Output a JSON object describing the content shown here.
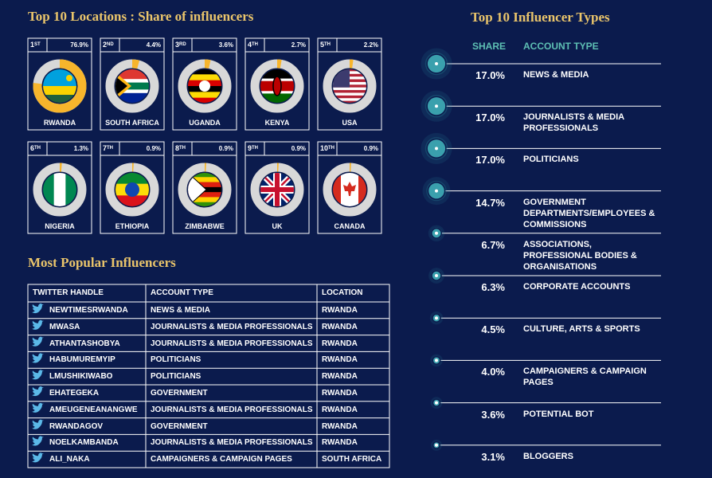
{
  "locations_section": {
    "title": "Top 10 Locations : Share of influencers",
    "locations": [
      {
        "rank": "1",
        "rank_suffix": "ST",
        "share": 76.9,
        "share_label": "76.9%",
        "name": "RWANDA"
      },
      {
        "rank": "2",
        "rank_suffix": "ND",
        "share": 4.4,
        "share_label": "4.4%",
        "name": "SOUTH AFRICA"
      },
      {
        "rank": "3",
        "rank_suffix": "RD",
        "share": 3.6,
        "share_label": "3.6%",
        "name": "UGANDA"
      },
      {
        "rank": "4",
        "rank_suffix": "TH",
        "share": 2.7,
        "share_label": "2.7%",
        "name": "KENYA"
      },
      {
        "rank": "5",
        "rank_suffix": "TH",
        "share": 2.2,
        "share_label": "2.2%",
        "name": "USA"
      },
      {
        "rank": "6",
        "rank_suffix": "TH",
        "share": 1.3,
        "share_label": "1.3%",
        "name": "NIGERIA"
      },
      {
        "rank": "7",
        "rank_suffix": "TH",
        "share": 0.9,
        "share_label": "0.9%",
        "name": "ETHIOPIA"
      },
      {
        "rank": "8",
        "rank_suffix": "TH",
        "share": 0.9,
        "share_label": "0.9%",
        "name": "ZIMBABWE"
      },
      {
        "rank": "9",
        "rank_suffix": "TH",
        "share": 0.9,
        "share_label": "0.9%",
        "name": "UK"
      },
      {
        "rank": "10",
        "rank_suffix": "TH",
        "share": 0.9,
        "share_label": "0.9%",
        "name": "CANADA"
      }
    ]
  },
  "influencers_section": {
    "title": "Most Popular Influencers",
    "table": {
      "header": [
        "TWITTER HANDLE",
        "ACCOUNT TYPE",
        "LOCATION"
      ],
      "rows": [
        [
          "NEWTIMESRWANDA",
          "NEWS & MEDIA",
          "RWANDA"
        ],
        [
          "MWASA",
          "JOURNALISTS & MEDIA PROFESSIONALS",
          "RWANDA"
        ],
        [
          "ATHANTASHOBYA",
          "JOURNALISTS & MEDIA PROFESSIONALS",
          "RWANDA"
        ],
        [
          "HABUMUREMYIP",
          "POLITICIANS",
          "RWANDA"
        ],
        [
          "LMUSHIKIWABO",
          "POLITICIANS",
          "RWANDA"
        ],
        [
          "EHATEGEKA",
          "GOVERNMENT",
          "RWANDA"
        ],
        [
          "AMEUGENEANANGWE",
          "JOURNALISTS & MEDIA PROFESSIONALS",
          "RWANDA"
        ],
        [
          "RWANDAGOV",
          "GOVERNMENT",
          "RWANDA"
        ],
        [
          "NOELKAMBANDA",
          "JOURNALISTS & MEDIA PROFESSIONALS",
          "RWANDA"
        ],
        [
          "ALI_NAKA",
          "CAMPAIGNERS & CAMPAIGN PAGES",
          "SOUTH AFRICA"
        ]
      ]
    }
  },
  "types_section": {
    "title": "Top 10 Influencer Types",
    "share_header": "SHARE",
    "type_header": "ACCOUNT TYPE",
    "types": [
      {
        "share": 17.0,
        "share_label": "17.0%",
        "type": "NEWS & MEDIA"
      },
      {
        "share": 17.0,
        "share_label": "17.0%",
        "type": "JOURNALISTS & MEDIA PROFESSIONALS"
      },
      {
        "share": 17.0,
        "share_label": "17.0%",
        "type": "POLITICIANS"
      },
      {
        "share": 14.7,
        "share_label": "14.7%",
        "type": "GOVERNMENT DEPARTMENTS/EMPLOYEES & COMMISSIONS"
      },
      {
        "share": 6.7,
        "share_label": "6.7%",
        "type": "ASSOCIATIONS, PROFESSIONAL BODIES & ORGANISATIONS"
      },
      {
        "share": 6.3,
        "share_label": "6.3%",
        "type": "CORPORATE ACCOUNTS"
      },
      {
        "share": 4.5,
        "share_label": "4.5%",
        "type": "CULTURE, ARTS & SPORTS"
      },
      {
        "share": 4.0,
        "share_label": "4.0%",
        "type": "CAMPAIGNERS & CAMPAIGN PAGES"
      },
      {
        "share": 3.6,
        "share_label": "3.6%",
        "type": "POTENTIAL BOT"
      },
      {
        "share": 3.1,
        "share_label": "3.1%",
        "type": "BLOGGERS"
      }
    ]
  }
}
